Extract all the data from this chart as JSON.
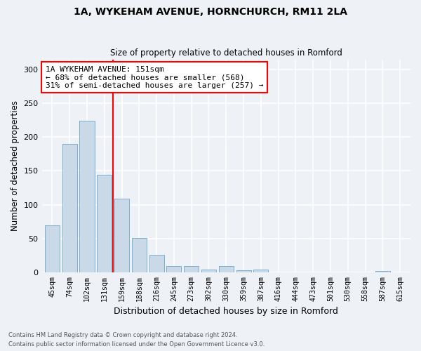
{
  "title_line1": "1A, WYKEHAM AVENUE, HORNCHURCH, RM11 2LA",
  "title_line2": "Size of property relative to detached houses in Romford",
  "xlabel": "Distribution of detached houses by size in Romford",
  "ylabel": "Number of detached properties",
  "categories": [
    "45sqm",
    "74sqm",
    "102sqm",
    "131sqm",
    "159sqm",
    "188sqm",
    "216sqm",
    "245sqm",
    "273sqm",
    "302sqm",
    "330sqm",
    "359sqm",
    "387sqm",
    "416sqm",
    "444sqm",
    "473sqm",
    "501sqm",
    "530sqm",
    "558sqm",
    "587sqm",
    "615sqm"
  ],
  "values": [
    69,
    190,
    224,
    144,
    109,
    51,
    26,
    9,
    9,
    4,
    9,
    3,
    4,
    0,
    0,
    0,
    0,
    0,
    0,
    2,
    0
  ],
  "bar_color": "#c9d9e8",
  "bar_edge_color": "#7bafd4",
  "property_line_x": 3.5,
  "property_line_color": "red",
  "annotation_text": "1A WYKEHAM AVENUE: 151sqm\n← 68% of detached houses are smaller (568)\n31% of semi-detached houses are larger (257) →",
  "annotation_box_color": "white",
  "annotation_box_edge_color": "red",
  "ylim": [
    0,
    315
  ],
  "yticks": [
    0,
    50,
    100,
    150,
    200,
    250,
    300
  ],
  "footer_line1": "Contains HM Land Registry data © Crown copyright and database right 2024.",
  "footer_line2": "Contains public sector information licensed under the Open Government Licence v3.0.",
  "background_color": "#eef2f7",
  "grid_color": "white",
  "fig_width": 6.0,
  "fig_height": 5.0,
  "dpi": 100
}
